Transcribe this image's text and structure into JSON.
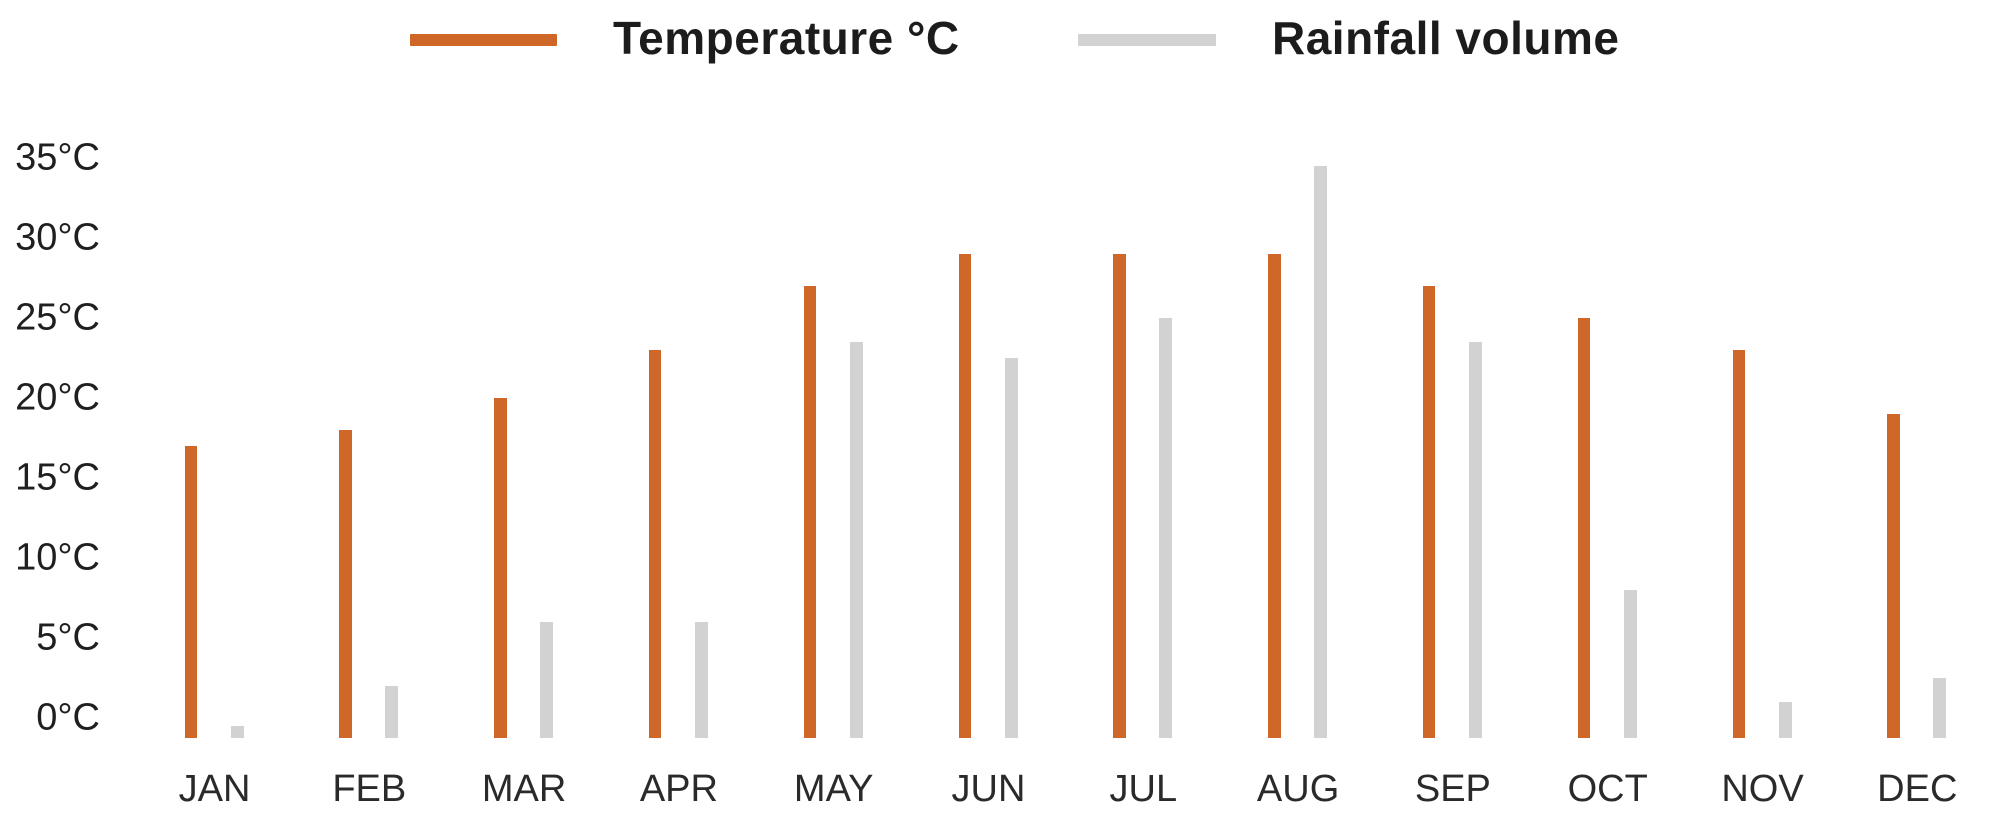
{
  "chart_data": {
    "type": "bar",
    "title": "",
    "categories": [
      "JAN",
      "FEB",
      "MAR",
      "APR",
      "MAY",
      "JUN",
      "JUL",
      "AUG",
      "SEP",
      "OCT",
      "NOV",
      "DEC"
    ],
    "series": [
      {
        "name": "Temperature °C",
        "color": "#CE6727",
        "values": [
          17,
          18,
          20,
          23,
          27,
          29,
          29,
          29,
          27,
          25,
          23,
          19
        ]
      },
      {
        "name": "Rainfall volume",
        "color": "#D2D2D2",
        "values": [
          -0.5,
          2,
          6,
          6,
          23.5,
          22.5,
          25,
          34.5,
          23.5,
          8,
          1,
          2.5
        ]
      }
    ],
    "y_axis": {
      "tick_labels": [
        "35°C",
        "30°C",
        "25°C",
        "20°C",
        "15°C",
        "10°C",
        "5°C",
        "0°C"
      ],
      "min": 0,
      "max": 35,
      "step": 5,
      "unit": "°C"
    },
    "legend": {
      "position": "top",
      "items": [
        "Temperature °C",
        "Rainfall volume"
      ]
    },
    "grid": false,
    "note": "Rainfall bars are drawn against the same displayed axis; no separate rainfall scale is shown. All bars extend slightly below the 0°C line; JAN rainfall is a tiny sliver below 0."
  }
}
